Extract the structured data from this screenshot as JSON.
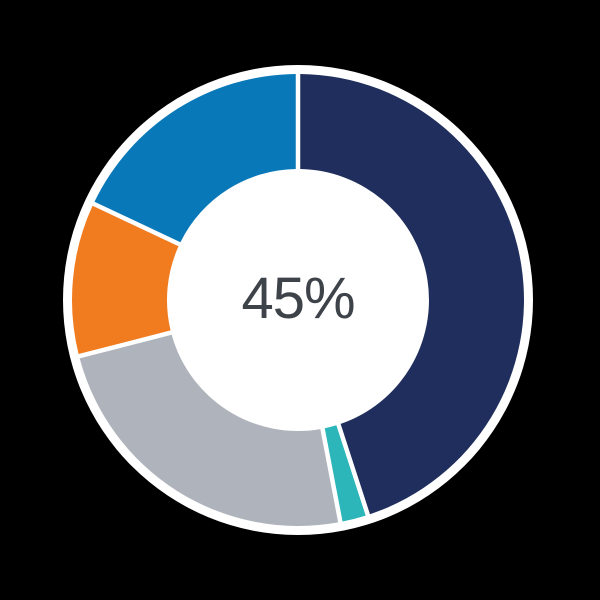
{
  "background_color": "#000000",
  "chart_data": {
    "type": "pie",
    "subtype": "donut",
    "title": "",
    "xlabel": "",
    "ylabel": "",
    "legend_position": "none",
    "start_angle_deg": 0,
    "direction": "clockwise",
    "center_label": "45%",
    "center_label_color": "#3E4349",
    "hole_color": "#FFFFFF",
    "separator_color": "#FFFFFF",
    "outer_border_color": "#FFFFFF",
    "segments": [
      {
        "name": "navy",
        "value_pct": 45,
        "color": "#1F2E5C"
      },
      {
        "name": "teal",
        "value_pct": 2,
        "color": "#2CB6B9"
      },
      {
        "name": "gray",
        "value_pct": 24,
        "color": "#AEB3BC"
      },
      {
        "name": "orange",
        "value_pct": 11,
        "color": "#F17C20"
      },
      {
        "name": "blue",
        "value_pct": 18,
        "color": "#0878B8"
      }
    ]
  }
}
